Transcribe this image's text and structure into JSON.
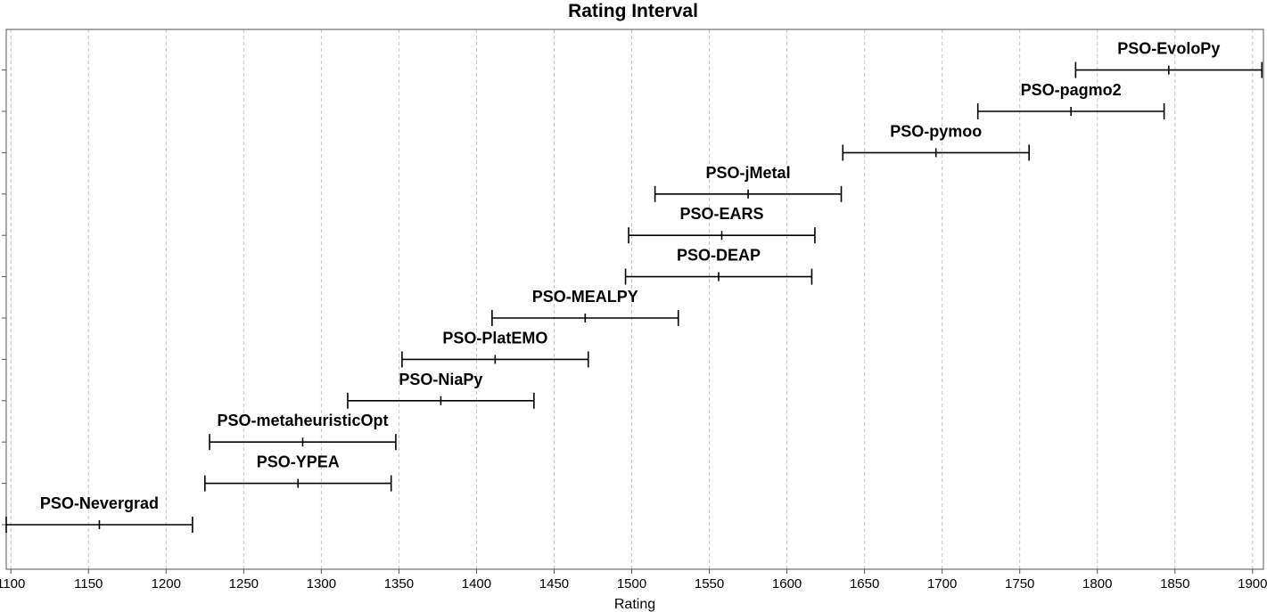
{
  "chart_data": {
    "type": "interval",
    "title": "Rating Interval",
    "xlabel": "Rating",
    "ylabel": "",
    "xlim": [
      1097,
      1907
    ],
    "xticks": [
      1100,
      1150,
      1200,
      1250,
      1300,
      1350,
      1400,
      1450,
      1500,
      1550,
      1600,
      1650,
      1700,
      1750,
      1800,
      1850,
      1900
    ],
    "grid": "vertical-dashed",
    "legend": "none",
    "intervals": [
      {
        "name": "PSO-Nevergrad",
        "low": 1097,
        "mid": 1157,
        "high": 1217
      },
      {
        "name": "PSO-YPEA",
        "low": 1225,
        "mid": 1285,
        "high": 1345
      },
      {
        "name": "PSO-metaheuristicOpt",
        "low": 1228,
        "mid": 1288,
        "high": 1348
      },
      {
        "name": "PSO-NiaPy",
        "low": 1317,
        "mid": 1377,
        "high": 1437
      },
      {
        "name": "PSO-PlatEMO",
        "low": 1352,
        "mid": 1412,
        "high": 1472
      },
      {
        "name": "PSO-MEALPY",
        "low": 1410,
        "mid": 1470,
        "high": 1530
      },
      {
        "name": "PSO-DEAP",
        "low": 1496,
        "mid": 1556,
        "high": 1616
      },
      {
        "name": "PSO-EARS",
        "low": 1498,
        "mid": 1558,
        "high": 1618
      },
      {
        "name": "PSO-jMetal",
        "low": 1515,
        "mid": 1575,
        "high": 1635
      },
      {
        "name": "PSO-pymoo",
        "low": 1636,
        "mid": 1696,
        "high": 1756
      },
      {
        "name": "PSO-pagmo2",
        "low": 1723,
        "mid": 1783,
        "high": 1843
      },
      {
        "name": "PSO-EvoloPy",
        "low": 1786,
        "mid": 1846,
        "high": 1906
      }
    ]
  }
}
